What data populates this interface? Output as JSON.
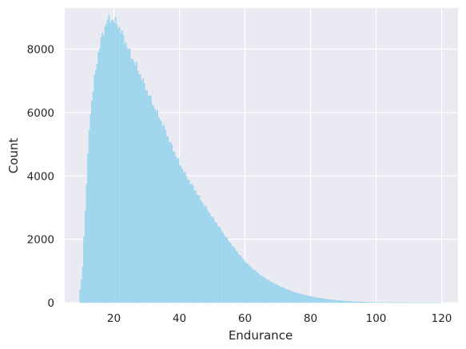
{
  "chart_data": {
    "type": "bar",
    "subtype": "histogram",
    "title": "",
    "xlabel": "Endurance",
    "ylabel": "Count",
    "xlim": [
      5,
      125
    ],
    "ylim": [
      0,
      9300
    ],
    "xticks": [
      20,
      40,
      60,
      80,
      100,
      120
    ],
    "yticks": [
      0,
      2000,
      4000,
      6000,
      8000
    ],
    "grid": true,
    "legend": "none",
    "colors": {
      "background": "#eaeaf2",
      "grid": "#ffffff",
      "bar_fill": "#a3d8ee",
      "bar_edge": "#8fcde8",
      "text": "#262626"
    },
    "bin_start": 9.5,
    "bin_width": 0.4,
    "profile_x": [
      9.5,
      10,
      10.5,
      11,
      11.5,
      12,
      12.5,
      13,
      13.5,
      14,
      15,
      16,
      17,
      18,
      19,
      20,
      21,
      22,
      23,
      24,
      25,
      26,
      28,
      30,
      32,
      35,
      38,
      40,
      42,
      45,
      48,
      50,
      52,
      55,
      58,
      60,
      62,
      65,
      68,
      70,
      72,
      75,
      78,
      80,
      82,
      85,
      88,
      90,
      92,
      95,
      98,
      100,
      105,
      110,
      115,
      120
    ],
    "profile_y": [
      250,
      600,
      1150,
      2300,
      3300,
      4400,
      5500,
      6100,
      6500,
      7000,
      7700,
      8250,
      8600,
      8900,
      8950,
      8900,
      8800,
      8600,
      8350,
      8100,
      7850,
      7650,
      7200,
      6700,
      6250,
      5600,
      4850,
      4400,
      4000,
      3500,
      3000,
      2700,
      2400,
      1950,
      1550,
      1300,
      1100,
      850,
      650,
      550,
      450,
      330,
      250,
      200,
      160,
      110,
      75,
      55,
      40,
      25,
      15,
      10,
      5,
      3,
      2,
      1
    ]
  }
}
